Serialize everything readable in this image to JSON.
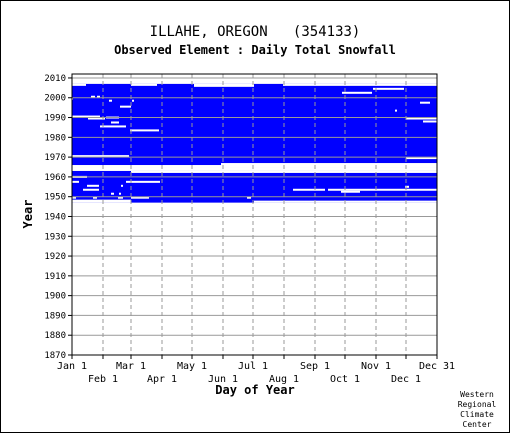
{
  "header": {
    "title": "ILLAHE, OREGON   (354133)",
    "subtitle": "Observed Element : Daily Total Snowfall"
  },
  "credit": [
    "Western",
    "Regional",
    "Climate",
    "Center"
  ],
  "colors": {
    "data": "#0000ff",
    "grid": "#999999",
    "axis": "#000000",
    "background": "#ffffff"
  },
  "chart_data": {
    "type": "heatmap",
    "title": "Observed Element : Daily Total Snowfall",
    "xlabel": "Day of Year",
    "ylabel": "Year",
    "xlim": [
      1,
      366
    ],
    "ylim": [
      1870,
      2012
    ],
    "grid": true,
    "x_ticks_row1": [
      {
        "label": "Jan 1",
        "day": 1
      },
      {
        "label": "Mar 1",
        "day": 60
      },
      {
        "label": "May 1",
        "day": 121
      },
      {
        "label": "Jul 1",
        "day": 182
      },
      {
        "label": "Sep 1",
        "day": 244
      },
      {
        "label": "Nov 1",
        "day": 305
      },
      {
        "label": "Dec 31",
        "day": 366
      }
    ],
    "x_ticks_row2": [
      {
        "label": "Feb 1",
        "day": 32
      },
      {
        "label": "Apr 1",
        "day": 91
      },
      {
        "label": "Jun 1",
        "day": 152
      },
      {
        "label": "Aug 1",
        "day": 213
      },
      {
        "label": "Oct 1",
        "day": 274
      },
      {
        "label": "Dec 1",
        "day": 335
      }
    ],
    "y_ticks": [
      1870,
      1880,
      1890,
      1900,
      1910,
      1920,
      1930,
      1940,
      1950,
      1960,
      1970,
      1980,
      1990,
      2000,
      2010
    ],
    "record_blocks": [
      {
        "day_start": 1,
        "day_end": 366,
        "year_start": 1947,
        "year_end": 1963
      },
      {
        "day_start": 1,
        "day_end": 366,
        "year_start": 1965,
        "year_end": 2007
      }
    ],
    "coverage_gaps": [
      {
        "day_start": 1,
        "day_end": 150,
        "year_start": 1965,
        "year_end": 1966
      },
      {
        "day_start": 150,
        "day_end": 366,
        "year_start": 1965,
        "year_end": 1967
      },
      {
        "day_start": 183,
        "day_end": 366,
        "year_start": 1947,
        "year_end": 1948
      },
      {
        "day_start": 60,
        "day_end": 366,
        "year_start": 1962,
        "year_end": 1963
      },
      {
        "day_start": 1,
        "day_end": 60,
        "year_start": 1947,
        "year_end": 1948.5
      },
      {
        "day_start": 1,
        "day_end": 15,
        "year_start": 2006,
        "year_end": 2007
      },
      {
        "day_start": 60,
        "day_end": 86,
        "year_start": 2006,
        "year_end": 2007
      },
      {
        "day_start": 123,
        "day_end": 183,
        "year_start": 2005.5,
        "year_end": 2007
      },
      {
        "day_start": 212,
        "day_end": 366,
        "year_start": 2006,
        "year_end": 2007
      }
    ],
    "missing_segments": [
      {
        "year": 1970.5,
        "day_start": 1,
        "day_end": 58
      },
      {
        "year": 1969.5,
        "day_start": 335,
        "day_end": 366
      },
      {
        "year": 1983.5,
        "day_start": 59,
        "day_end": 88
      },
      {
        "year": 1985.5,
        "day_start": 29,
        "day_end": 55
      },
      {
        "year": 1987.5,
        "day_start": 40,
        "day_end": 48
      },
      {
        "year": 1989.5,
        "day_start": 17,
        "day_end": 34
      },
      {
        "year": 1989.5,
        "day_start": 335,
        "day_end": 366
      },
      {
        "year": 1988.0,
        "day_start": 352,
        "day_end": 366
      },
      {
        "year": 1990.5,
        "day_start": 1,
        "day_end": 29
      },
      {
        "year": 1990.0,
        "day_start": 35,
        "day_end": 48
      },
      {
        "year": 1995.5,
        "day_start": 49,
        "day_end": 60
      },
      {
        "year": 1997.5,
        "day_start": 349,
        "day_end": 359
      },
      {
        "year": 1998.5,
        "day_start": 38,
        "day_end": 41
      },
      {
        "year": 1998.5,
        "day_start": 61,
        "day_end": 63
      },
      {
        "year": 2000.5,
        "day_start": 20,
        "day_end": 24
      },
      {
        "year": 2000.5,
        "day_start": 26,
        "day_end": 29
      },
      {
        "year": 2002.5,
        "day_start": 271,
        "day_end": 301
      },
      {
        "year": 2004.5,
        "day_start": 302,
        "day_end": 333
      },
      {
        "year": 1993.5,
        "day_start": 324,
        "day_end": 326
      },
      {
        "year": 1999.5,
        "day_start": 1,
        "day_end": 2
      },
      {
        "year": 1960.0,
        "day_start": 1,
        "day_end": 16
      },
      {
        "year": 1957.5,
        "day_start": 1,
        "day_end": 8
      },
      {
        "year": 1957.5,
        "day_start": 55,
        "day_end": 89
      },
      {
        "year": 1955.5,
        "day_start": 16,
        "day_end": 28
      },
      {
        "year": 1955.5,
        "day_start": 50,
        "day_end": 52
      },
      {
        "year": 1953.5,
        "day_start": 12,
        "day_end": 28
      },
      {
        "year": 1953.5,
        "day_start": 222,
        "day_end": 254
      },
      {
        "year": 1953.5,
        "day_start": 257,
        "day_end": 366
      },
      {
        "year": 1952.5,
        "day_start": 270,
        "day_end": 289
      },
      {
        "year": 1951.5,
        "day_start": 40,
        "day_end": 43
      },
      {
        "year": 1951.5,
        "day_start": 48,
        "day_end": 50
      },
      {
        "year": 1955.0,
        "day_start": 334,
        "day_end": 338
      },
      {
        "year": 1949.5,
        "day_start": 1,
        "day_end": 5
      },
      {
        "year": 1949.5,
        "day_start": 22,
        "day_end": 26
      },
      {
        "year": 1949.5,
        "day_start": 47,
        "day_end": 52
      },
      {
        "year": 1949.5,
        "day_start": 60,
        "day_end": 78
      },
      {
        "year": 1949.5,
        "day_start": 176,
        "day_end": 180
      }
    ]
  }
}
